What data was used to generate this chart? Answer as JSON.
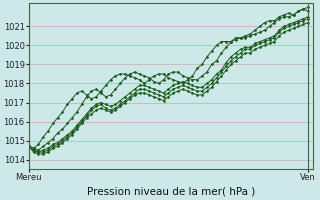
{
  "title": "Pression niveau de la mer( hPa )",
  "xlabel_left": "Mereu",
  "xlabel_right": "Ven",
  "ylim": [
    1013.5,
    1022.2
  ],
  "xlim": [
    0,
    59
  ],
  "bg_color": "#cce8e8",
  "grid_color": "#aacccc",
  "line_color": "#1a5c1a",
  "marker": "D",
  "markersize": 1.5,
  "linewidth": 0.7,
  "yticks": [
    1014,
    1015,
    1016,
    1017,
    1018,
    1019,
    1020,
    1021
  ],
  "series": [
    [
      1014.7,
      1014.5,
      1014.4,
      1014.4,
      1014.5,
      1014.7,
      1014.8,
      1015.0,
      1015.2,
      1015.4,
      1015.7,
      1016.0,
      1016.3,
      1016.6,
      1016.8,
      1016.9,
      1016.7,
      1016.6,
      1016.7,
      1016.9,
      1017.1,
      1017.3,
      1017.5,
      1017.7,
      1017.7,
      1017.6,
      1017.5,
      1017.4,
      1017.3,
      1017.5,
      1017.7,
      1017.8,
      1017.9,
      1017.8,
      1017.7,
      1017.6,
      1017.6,
      1017.8,
      1018.0,
      1018.3,
      1018.6,
      1018.9,
      1019.2,
      1019.4,
      1019.6,
      1019.8,
      1019.8,
      1020.0,
      1020.1,
      1020.2,
      1020.3,
      1020.4,
      1020.7,
      1020.9,
      1021.0,
      1021.1,
      1021.2,
      1021.3,
      1021.4
    ],
    [
      1014.7,
      1014.4,
      1014.3,
      1014.3,
      1014.4,
      1014.6,
      1014.7,
      1014.9,
      1015.1,
      1015.3,
      1015.6,
      1015.9,
      1016.2,
      1016.4,
      1016.6,
      1016.7,
      1016.6,
      1016.5,
      1016.6,
      1016.8,
      1017.0,
      1017.2,
      1017.4,
      1017.5,
      1017.5,
      1017.4,
      1017.3,
      1017.2,
      1017.1,
      1017.3,
      1017.5,
      1017.6,
      1017.7,
      1017.6,
      1017.5,
      1017.4,
      1017.4,
      1017.6,
      1017.8,
      1018.1,
      1018.4,
      1018.7,
      1019.0,
      1019.2,
      1019.4,
      1019.6,
      1019.6,
      1019.8,
      1019.9,
      1020.0,
      1020.1,
      1020.2,
      1020.5,
      1020.7,
      1020.8,
      1020.9,
      1021.0,
      1021.1,
      1021.2
    ],
    [
      1014.7,
      1014.5,
      1014.4,
      1014.5,
      1014.6,
      1014.8,
      1014.9,
      1015.1,
      1015.3,
      1015.5,
      1015.8,
      1016.1,
      1016.4,
      1016.7,
      1016.9,
      1017.0,
      1016.9,
      1016.8,
      1016.9,
      1017.1,
      1017.3,
      1017.5,
      1017.7,
      1017.9,
      1017.9,
      1017.8,
      1017.7,
      1017.6,
      1017.5,
      1017.7,
      1017.9,
      1018.0,
      1018.1,
      1018.0,
      1017.9,
      1017.8,
      1017.8,
      1018.0,
      1018.2,
      1018.5,
      1018.7,
      1019.1,
      1019.4,
      1019.6,
      1019.8,
      1019.9,
      1019.9,
      1020.1,
      1020.2,
      1020.3,
      1020.4,
      1020.5,
      1020.8,
      1021.0,
      1021.1,
      1021.2,
      1021.3,
      1021.4,
      1021.5
    ],
    [
      1014.7,
      1014.6,
      1014.5,
      1014.7,
      1014.9,
      1015.1,
      1015.4,
      1015.6,
      1015.9,
      1016.2,
      1016.5,
      1016.9,
      1017.3,
      1017.6,
      1017.7,
      1017.5,
      1017.3,
      1017.4,
      1017.7,
      1018.0,
      1018.3,
      1018.5,
      1018.6,
      1018.5,
      1018.4,
      1018.3,
      1018.1,
      1018.0,
      1018.2,
      1018.5,
      1018.6,
      1018.6,
      1018.4,
      1018.3,
      1018.2,
      1018.2,
      1018.4,
      1018.6,
      1019.0,
      1019.2,
      1019.6,
      1019.9,
      1020.2,
      1020.4,
      1020.4,
      1020.4,
      1020.5,
      1020.6,
      1020.7,
      1020.8,
      1021.0,
      1021.2,
      1021.4,
      1021.5,
      1021.5,
      1021.6,
      1021.8,
      1021.9,
      1021.8
    ],
    [
      1014.7,
      1014.6,
      1014.8,
      1015.2,
      1015.5,
      1015.9,
      1016.2,
      1016.5,
      1016.9,
      1017.2,
      1017.5,
      1017.6,
      1017.4,
      1017.2,
      1017.3,
      1017.6,
      1017.9,
      1018.2,
      1018.4,
      1018.5,
      1018.5,
      1018.4,
      1018.3,
      1018.2,
      1018.0,
      1018.2,
      1018.4,
      1018.5,
      1018.5,
      1018.3,
      1018.2,
      1018.1,
      1018.0,
      1018.2,
      1018.4,
      1018.8,
      1019.0,
      1019.4,
      1019.7,
      1020.0,
      1020.2,
      1020.2,
      1020.2,
      1020.3,
      1020.4,
      1020.5,
      1020.6,
      1020.8,
      1021.0,
      1021.2,
      1021.3,
      1021.3,
      1021.5,
      1021.6,
      1021.7,
      1021.6,
      1021.8,
      1021.9,
      1022.0
    ]
  ],
  "title_fontsize": 7.5,
  "tick_fontsize": 6.0,
  "label_fontsize": 7.5
}
